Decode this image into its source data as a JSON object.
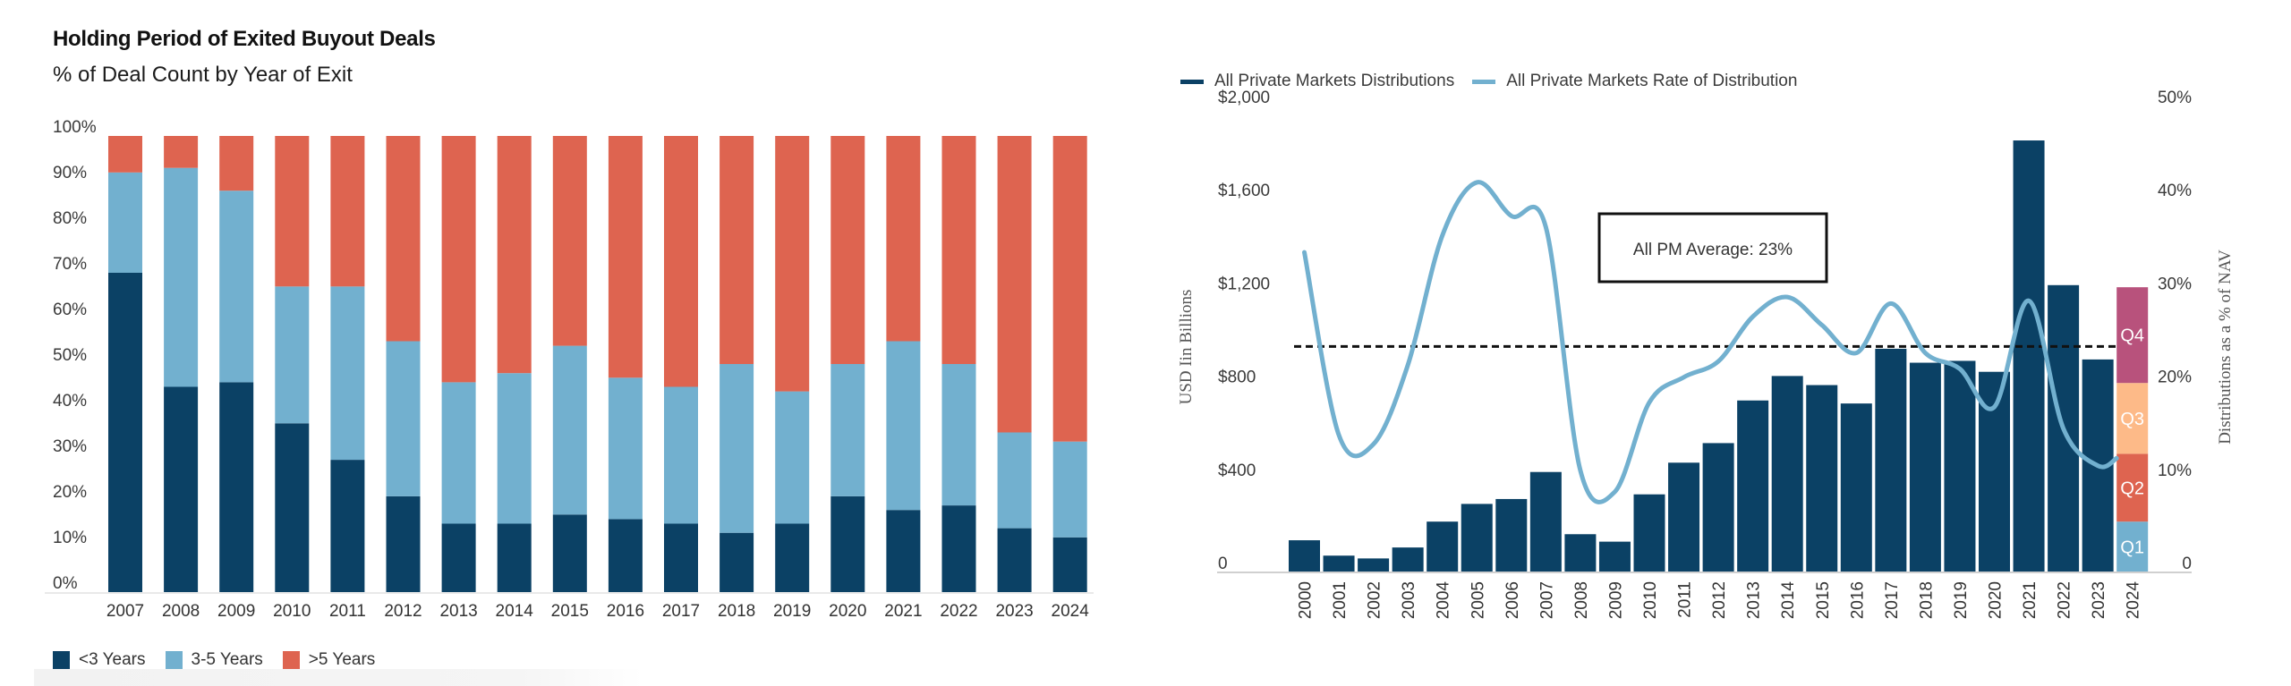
{
  "left_panel": {
    "title": "Holding Period of Exited Buyout Deals",
    "subtitle": "% of Deal Count by Year of Exit",
    "legend": [
      {
        "label": "<3 Years",
        "color": "#0b4165"
      },
      {
        "label": "3-5 Years",
        "color": "#72b0cf"
      },
      {
        "label": ">5 Years",
        "color": "#de6450"
      }
    ]
  },
  "right_panel": {
    "legend": [
      {
        "label": "All Private Markets Distributions",
        "color": "#0b4165"
      },
      {
        "label": "All Private Markets Rate of Distribution",
        "color": "#72b0cf"
      }
    ],
    "annotation": "All PM Average: 23%",
    "y_left_title": "USD Iin Billions",
    "y_right_title": "Distributions as a % of NAV"
  },
  "chart_data": [
    {
      "type": "bar",
      "stacked": true,
      "title": "Holding Period of Exited Buyout Deals",
      "subtitle": "% of Deal Count by Year of Exit",
      "xlabel": "",
      "ylabel": "",
      "ylim": [
        0,
        100
      ],
      "yticks": [
        "0%",
        "10%",
        "20%",
        "30%",
        "40%",
        "50%",
        "60%",
        "70%",
        "80%",
        "90%",
        "100%"
      ],
      "grid": false,
      "legend_position": "bottom-left",
      "categories": [
        "2007",
        "2008",
        "2009",
        "2010",
        "2011",
        "2012",
        "2013",
        "2014",
        "2015",
        "2016",
        "2017",
        "2018",
        "2019",
        "2020",
        "2021",
        "2022",
        "2023",
        "2024"
      ],
      "series": [
        {
          "name": "<3 Years",
          "color": "#0b4165",
          "values": [
            70,
            45,
            46,
            37,
            29,
            21,
            15,
            15,
            17,
            16,
            15,
            13,
            15,
            21,
            18,
            19,
            14,
            12
          ]
        },
        {
          "name": "3-5 Years",
          "color": "#72b0cf",
          "values": [
            22,
            48,
            42,
            30,
            38,
            34,
            31,
            33,
            37,
            31,
            30,
            37,
            29,
            29,
            37,
            31,
            21,
            21
          ]
        },
        {
          "name": ">5 Years",
          "color": "#de6450",
          "values": [
            8,
            7,
            12,
            33,
            33,
            45,
            54,
            52,
            46,
            53,
            55,
            50,
            56,
            50,
            45,
            50,
            65,
            67
          ]
        }
      ]
    },
    {
      "type": "bar",
      "combo": "bar+line",
      "title": "",
      "xlabel": "",
      "ylabel": "USD Iin Billions",
      "ylabel_right": "Distributions as a % of NAV",
      "ylim": [
        0,
        2000
      ],
      "ylim_right": [
        0,
        50
      ],
      "yticks": [
        "0",
        "$400",
        "$800",
        "$1,200",
        "$1,600",
        "$2,000"
      ],
      "yticks_right": [
        "0",
        "10%",
        "20%",
        "30%",
        "40%",
        "50%"
      ],
      "grid": false,
      "legend_position": "top-left",
      "categories": [
        "2000",
        "2001",
        "2002",
        "2003",
        "2004",
        "2005",
        "2006",
        "2007",
        "2008",
        "2009",
        "2010",
        "2011",
        "2012",
        "2013",
        "2014",
        "2015",
        "2016",
        "2017",
        "2018",
        "2019",
        "2020",
        "2021",
        "2022",
        "2023",
        "2024"
      ],
      "series": [
        {
          "name": "All Private Markets Distributions",
          "type": "bar",
          "axis": "left",
          "color": "#0b4165",
          "values": [
            138,
            72,
            60,
            107,
            218,
            294,
            315,
            431,
            164,
            132,
            335,
            471,
            555,
            738,
            843,
            804,
            725,
            960,
            900,
            908,
            861,
            1854,
            1233,
            914,
            null
          ]
        },
        {
          "name": "All Private Markets Rate of Distribution",
          "type": "line",
          "axis": "right",
          "color": "#72b0cf",
          "values": [
            33.1,
            13.5,
            12.5,
            21.0,
            34.9,
            40.6,
            37.0,
            35.8,
            9.7,
            7.4,
            17.0,
            19.7,
            21.4,
            26.2,
            28.3,
            25.3,
            22.3,
            27.6,
            22.3,
            20.6,
            16.5,
            27.9,
            14.2,
            10.2,
            11.0
          ]
        }
      ],
      "stacked_2024": [
        {
          "label": "Q1",
          "value": 218,
          "color": "#72b0cf"
        },
        {
          "label": "Q2",
          "value": 291,
          "color": "#de6450"
        },
        {
          "label": "Q3",
          "value": 304,
          "color": "#fdba88"
        },
        {
          "label": "Q4",
          "value": 411,
          "color": "#b8527c"
        }
      ],
      "reference_line": {
        "label": "All PM Average: 23%",
        "value": 23,
        "axis": "right",
        "style": "dashed",
        "color": "#111111"
      }
    }
  ]
}
